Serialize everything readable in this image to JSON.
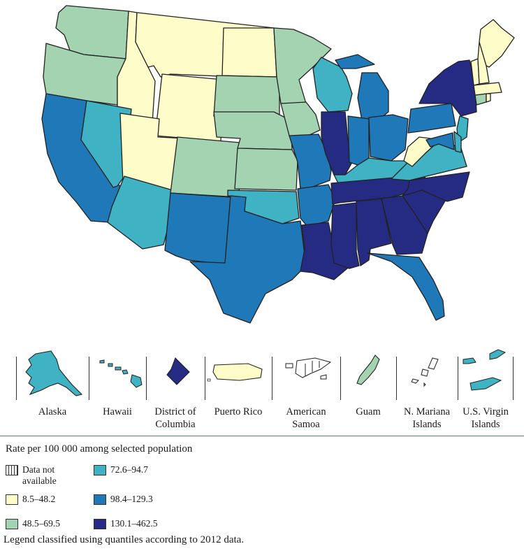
{
  "map": {
    "insets": [
      {
        "name": "Alaska",
        "label": "Alaska",
        "class": "72.6–94.7"
      },
      {
        "name": "Hawaii",
        "label": "Hawaii",
        "class": "72.6–94.7"
      },
      {
        "name": "District of Columbia",
        "label": "District of Columbia",
        "class": "130.1–462.5"
      },
      {
        "name": "Puerto Rico",
        "label": "Puerto Rico",
        "class": "8.5–48.2"
      },
      {
        "name": "American Samoa",
        "label": "American Samoa",
        "class": "Data not available"
      },
      {
        "name": "Guam",
        "label": "Guam",
        "class": "48.5–69.5"
      },
      {
        "name": "N. Mariana Islands",
        "label": "N. Mariana Islands",
        "class": "Data not available"
      },
      {
        "name": "U.S. Virgin Islands",
        "label": "U.S. Virgin Islands",
        "class": "72.6–94.7"
      }
    ]
  },
  "legend": {
    "title": "Rate per 100 000 among selected population",
    "items": [
      {
        "label": "Data not available",
        "color": "hatch"
      },
      {
        "label": "8.5–48.2",
        "color": "#fefcc8"
      },
      {
        "label": "48.5–69.5",
        "color": "#a3d3b0"
      },
      {
        "label": "72.6–94.7",
        "color": "#3fb2c3"
      },
      {
        "label": "98.4–129.3",
        "color": "#1f78b7"
      },
      {
        "label": "130.1–462.5",
        "color": "#252a82"
      }
    ],
    "note": "Legend classified using quantiles according to 2012 data."
  },
  "states": {
    "Washington": "48.5–69.5",
    "Oregon": "48.5–69.5",
    "California": "98.4–129.3",
    "Idaho": "8.5–48.2",
    "Nevada": "72.6–94.7",
    "Montana": "8.5–48.2",
    "Wyoming": "8.5–48.2",
    "Utah": "8.5–48.2",
    "Arizona": "72.6–94.7",
    "Colorado": "48.5–69.5",
    "New Mexico": "98.4–129.3",
    "North Dakota": "8.5–48.2",
    "South Dakota": "48.5–69.5",
    "Nebraska": "48.5–69.5",
    "Kansas": "48.5–69.5",
    "Oklahoma": "72.6–94.7",
    "Texas": "98.4–129.3",
    "Minnesota": "48.5–69.5",
    "Iowa": "48.5–69.5",
    "Missouri": "98.4–129.3",
    "Arkansas": "98.4–129.3",
    "Louisiana": "130.1–462.5",
    "Wisconsin": "72.6–94.7",
    "Illinois": "130.1–462.5",
    "Michigan": "98.4–129.3",
    "Indiana": "98.4–129.3",
    "Ohio": "98.4–129.3",
    "Kentucky": "72.6–94.7",
    "Tennessee": "130.1–462.5",
    "Mississippi": "130.1–462.5",
    "Alabama": "130.1–462.5",
    "Georgia": "130.1–462.5",
    "Florida": "98.4–129.3",
    "South Carolina": "130.1–462.5",
    "North Carolina": "130.1–462.5",
    "Virginia": "72.6–94.7",
    "West Virginia": "8.5–48.2",
    "Pennsylvania": "98.4–129.3",
    "New York": "130.1–462.5",
    "New Jersey": "72.6–94.7",
    "Delaware": "72.6–94.7",
    "Maryland": "98.4–129.3",
    "Connecticut": "48.5–69.5",
    "Rhode Island": "8.5–48.2",
    "Massachusetts": "8.5–48.2",
    "Vermont": "8.5–48.2",
    "New Hampshire": "8.5–48.2",
    "Maine": "8.5–48.2"
  }
}
